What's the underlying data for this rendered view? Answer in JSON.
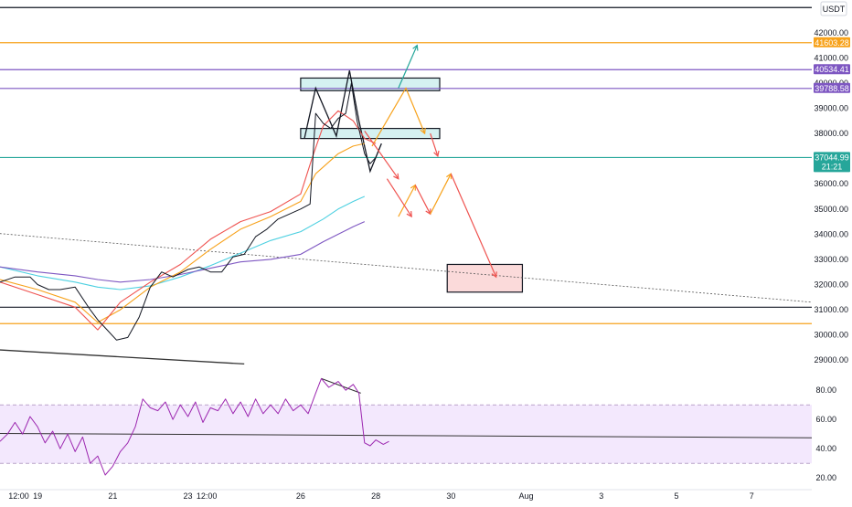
{
  "currency": "USDT",
  "chart_data": [
    {
      "type": "line",
      "panel": "price",
      "title": "",
      "price_ticks": [
        42000,
        41000,
        40000,
        39000,
        38000,
        37000,
        36000,
        35000,
        34000,
        33000,
        32000,
        31000,
        30000,
        29000
      ],
      "price_tick_labels": [
        "42000.00",
        "41000.00",
        "40000.00",
        "39000.00",
        "38000.00",
        "37000.00",
        "36000.00",
        "35000.00",
        "34000.00",
        "33000.00",
        "32000.00",
        "31000.00",
        "30000.00",
        "29000.00"
      ],
      "ylim": [
        28500,
        43300
      ],
      "x_ticks": [
        {
          "label": "12:00",
          "t": 0.5
        },
        {
          "label": "19",
          "t": 1
        },
        {
          "label": "21",
          "t": 3
        },
        {
          "label": "23",
          "t": 5
        },
        {
          "label": "12:00",
          "t": 5.5
        },
        {
          "label": "26",
          "t": 8
        },
        {
          "label": "28",
          "t": 10
        },
        {
          "label": "30",
          "t": 12
        },
        {
          "label": "Aug",
          "t": 14
        },
        {
          "label": "3",
          "t": 16
        },
        {
          "label": "5",
          "t": 18
        },
        {
          "label": "7",
          "t": 20
        }
      ],
      "xlim": [
        0,
        21.6
      ],
      "price_lines": [
        {
          "price": 43000,
          "label": "",
          "color": "#131722"
        },
        {
          "price": 41603.28,
          "label": "41603.28",
          "color": "#f7a21b"
        },
        {
          "price": 40534.41,
          "label": "40534.41",
          "color": "#7e57c2"
        },
        {
          "price": 39788.58,
          "label": "39788.58",
          "color": "#7e57c2"
        },
        {
          "price": 37044.99,
          "label": "37044.99",
          "countdown": "21:21",
          "color": "#26a69a"
        },
        {
          "price": 31100,
          "label": "",
          "color": "#131722"
        },
        {
          "price": 30450,
          "label": "",
          "color": "#f7a21b"
        }
      ],
      "zones": [
        {
          "t0": 8.0,
          "t1": 11.7,
          "p0": 39700,
          "p1": 40200,
          "color": "#d5f1f1"
        },
        {
          "t0": 8.0,
          "t1": 11.7,
          "p0": 37800,
          "p1": 38200,
          "color": "#d5f1f1"
        },
        {
          "t0": 11.9,
          "t1": 13.9,
          "p0": 31700,
          "p1": 32800,
          "color": "#fbdada"
        }
      ],
      "trendlines": [
        {
          "points": [
            [
              -0.2,
              34050
            ],
            [
              21.6,
              31300
            ]
          ],
          "color": "#555555",
          "dashed": true
        },
        {
          "points": [
            [
              -0.2,
              29420
            ],
            [
              6.5,
              28850
            ]
          ],
          "color": "#333333",
          "dashed": false
        },
        {
          "points": [
            [
              8.1,
              37800
            ],
            [
              8.4,
              39800
            ],
            [
              8.95,
              37900
            ],
            [
              9.3,
              40500
            ],
            [
              9.55,
              38500
            ],
            [
              9.85,
              36500
            ],
            [
              10.15,
              37600
            ]
          ],
          "color": "#131722",
          "dashed": false
        }
      ],
      "projections": [
        {
          "points": [
            [
              9.9,
              37500
            ],
            [
              10.8,
              39800
            ],
            [
              11.3,
              38000
            ]
          ],
          "color": "#f7a21b"
        },
        {
          "points": [
            [
              9.7,
              38100
            ],
            [
              10.6,
              36200
            ]
          ],
          "color": "#ef5350"
        },
        {
          "points": [
            [
              10.6,
              34700
            ],
            [
              11.05,
              35950
            ]
          ],
          "color": "#f7a21b"
        },
        {
          "points": [
            [
              11.05,
              35950
            ],
            [
              11.45,
              34800
            ]
          ],
          "color": "#ef5350"
        },
        {
          "points": [
            [
              11.45,
              34800
            ],
            [
              12.0,
              36400
            ]
          ],
          "color": "#f7a21b"
        },
        {
          "points": [
            [
              12.0,
              36400
            ],
            [
              13.2,
              32300
            ]
          ],
          "color": "#ef5350"
        },
        {
          "points": [
            [
              10.6,
              39800
            ],
            [
              11.1,
              41500
            ]
          ],
          "color": "#26a69a"
        },
        {
          "points": [
            [
              11.45,
              38000
            ],
            [
              11.65,
              37100
            ]
          ],
          "color": "#ef5350"
        },
        {
          "points": [
            [
              10.3,
              36200
            ],
            [
              10.95,
              34700
            ]
          ],
          "color": "#ef5350"
        }
      ],
      "series": [
        {
          "name": "",
          "kind": "ma",
          "color": "#4dd0e1",
          "values": [
            [
              0.0,
              32700
            ],
            [
              1.0,
              32350
            ],
            [
              2.0,
              32100
            ],
            [
              2.6,
              31900
            ],
            [
              3.2,
              31800
            ],
            [
              4.0,
              31950
            ],
            [
              4.8,
              32300
            ],
            [
              5.6,
              32750
            ],
            [
              6.4,
              33250
            ],
            [
              7.2,
              33750
            ],
            [
              8.0,
              34100
            ],
            [
              8.6,
              34600
            ],
            [
              9.0,
              35000
            ],
            [
              9.4,
              35300
            ],
            [
              9.7,
              35500
            ]
          ]
        },
        {
          "name": "",
          "kind": "ma",
          "color": "#7e57c2",
          "values": [
            [
              0.0,
              32700
            ],
            [
              1.0,
              32500
            ],
            [
              2.0,
              32350
            ],
            [
              2.6,
              32200
            ],
            [
              3.2,
              32100
            ],
            [
              4.0,
              32200
            ],
            [
              4.8,
              32400
            ],
            [
              5.6,
              32650
            ],
            [
              6.4,
              32900
            ],
            [
              7.2,
              33000
            ],
            [
              8.0,
              33200
            ],
            [
              8.6,
              33700
            ],
            [
              9.0,
              34000
            ],
            [
              9.4,
              34300
            ],
            [
              9.7,
              34500
            ]
          ]
        },
        {
          "name": "",
          "kind": "ma",
          "color": "#f7a21b",
          "values": [
            [
              0.0,
              32200
            ],
            [
              1.0,
              31800
            ],
            [
              2.0,
              31300
            ],
            [
              2.6,
              30500
            ],
            [
              3.2,
              31000
            ],
            [
              4.0,
              31900
            ],
            [
              4.8,
              32500
            ],
            [
              5.6,
              33400
            ],
            [
              6.4,
              34200
            ],
            [
              7.2,
              34700
            ],
            [
              8.0,
              35300
            ],
            [
              8.4,
              36400
            ],
            [
              9.0,
              37200
            ],
            [
              9.4,
              37500
            ],
            [
              9.7,
              37600
            ]
          ]
        },
        {
          "name": "",
          "kind": "ma",
          "color": "#ef5350",
          "values": [
            [
              0.0,
              32100
            ],
            [
              1.0,
              31600
            ],
            [
              2.0,
              31100
            ],
            [
              2.6,
              30200
            ],
            [
              3.2,
              31300
            ],
            [
              4.0,
              32100
            ],
            [
              4.8,
              32800
            ],
            [
              5.6,
              33800
            ],
            [
              6.4,
              34500
            ],
            [
              7.2,
              34900
            ],
            [
              8.0,
              35600
            ],
            [
              8.3,
              37000
            ],
            [
              8.6,
              38300
            ],
            [
              9.0,
              38900
            ],
            [
              9.4,
              38500
            ],
            [
              9.7,
              37800
            ],
            [
              10.0,
              37600
            ]
          ]
        },
        {
          "name": "",
          "kind": "price",
          "color": "#131722",
          "values": [
            [
              0.0,
              32100
            ],
            [
              0.4,
              32300
            ],
            [
              0.8,
              32300
            ],
            [
              1.0,
              32000
            ],
            [
              1.3,
              31800
            ],
            [
              1.6,
              31800
            ],
            [
              2.0,
              31900
            ],
            [
              2.4,
              31000
            ],
            [
              2.6,
              30600
            ],
            [
              2.85,
              30200
            ],
            [
              3.1,
              29800
            ],
            [
              3.4,
              29900
            ],
            [
              3.7,
              30700
            ],
            [
              4.0,
              31900
            ],
            [
              4.3,
              32500
            ],
            [
              4.6,
              32300
            ],
            [
              5.0,
              32600
            ],
            [
              5.3,
              32700
            ],
            [
              5.6,
              32500
            ],
            [
              5.9,
              32500
            ],
            [
              6.2,
              33100
            ],
            [
              6.5,
              33200
            ],
            [
              6.8,
              33900
            ],
            [
              7.1,
              34200
            ],
            [
              7.4,
              34600
            ],
            [
              7.7,
              34800
            ],
            [
              8.0,
              35000
            ],
            [
              8.25,
              35200
            ],
            [
              8.4,
              38800
            ],
            [
              8.6,
              38400
            ],
            [
              8.8,
              38200
            ],
            [
              9.0,
              38600
            ],
            [
              9.2,
              38800
            ],
            [
              9.35,
              40000
            ],
            [
              9.5,
              38500
            ],
            [
              9.7,
              37200
            ],
            [
              9.85,
              36800
            ],
            [
              10.0,
              37050
            ]
          ]
        }
      ]
    },
    {
      "type": "line",
      "panel": "oscillator",
      "title": "",
      "ticks": [
        80,
        60,
        40,
        20
      ],
      "tick_labels": [
        "80.00",
        "60.00",
        "40.00",
        "20.00"
      ],
      "ylim": [
        12,
        92
      ],
      "band": [
        30,
        70
      ],
      "trendlines": [
        {
          "points": [
            [
              -0.2,
              50.5
            ],
            [
              21.6,
              47.5
            ]
          ],
          "color": "#333333"
        },
        {
          "points": [
            [
              8.55,
              88
            ],
            [
              9.6,
              78
            ]
          ],
          "color": "#333333"
        }
      ],
      "series": [
        {
          "name": "",
          "color": "#9c27b0",
          "values": [
            [
              0.0,
              45
            ],
            [
              0.2,
              50
            ],
            [
              0.4,
              58
            ],
            [
              0.6,
              50
            ],
            [
              0.8,
              62
            ],
            [
              1.0,
              55
            ],
            [
              1.2,
              44
            ],
            [
              1.4,
              52
            ],
            [
              1.6,
              40
            ],
            [
              1.8,
              50
            ],
            [
              2.0,
              38
            ],
            [
              2.2,
              48
            ],
            [
              2.4,
              30
            ],
            [
              2.6,
              35
            ],
            [
              2.8,
              22
            ],
            [
              3.0,
              28
            ],
            [
              3.2,
              38
            ],
            [
              3.4,
              44
            ],
            [
              3.6,
              55
            ],
            [
              3.8,
              74
            ],
            [
              4.0,
              68
            ],
            [
              4.2,
              66
            ],
            [
              4.4,
              72
            ],
            [
              4.6,
              60
            ],
            [
              4.8,
              70
            ],
            [
              5.0,
              62
            ],
            [
              5.2,
              72
            ],
            [
              5.4,
              58
            ],
            [
              5.6,
              68
            ],
            [
              5.8,
              66
            ],
            [
              6.0,
              74
            ],
            [
              6.2,
              64
            ],
            [
              6.4,
              72
            ],
            [
              6.6,
              62
            ],
            [
              6.8,
              74
            ],
            [
              7.0,
              64
            ],
            [
              7.2,
              70
            ],
            [
              7.4,
              64
            ],
            [
              7.6,
              74
            ],
            [
              7.8,
              66
            ],
            [
              8.0,
              70
            ],
            [
              8.2,
              64
            ],
            [
              8.4,
              78
            ],
            [
              8.55,
              88
            ],
            [
              8.75,
              82
            ],
            [
              9.0,
              86
            ],
            [
              9.2,
              80
            ],
            [
              9.4,
              84
            ],
            [
              9.55,
              78
            ],
            [
              9.7,
              44
            ],
            [
              9.85,
              42
            ],
            [
              10.0,
              46
            ],
            [
              10.2,
              43
            ],
            [
              10.35,
              45
            ]
          ]
        }
      ]
    }
  ]
}
